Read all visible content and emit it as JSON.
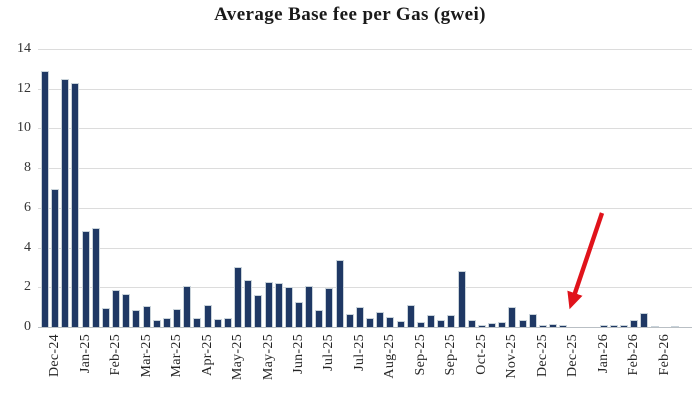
{
  "title": "Average Base fee per Gas (gwei)",
  "chart_data": {
    "type": "bar",
    "title": "Average Base fee per Gas (gwei)",
    "xlabel": "",
    "ylabel": "",
    "ylim": [
      0,
      14
    ],
    "yticks": [
      0,
      2,
      4,
      6,
      8,
      10,
      12,
      14
    ],
    "grid": true,
    "x_unit": "weekly bars",
    "values": [
      12.87,
      6.97,
      12.51,
      12.31,
      4.82,
      4.99,
      0.96,
      1.88,
      1.68,
      0.84,
      1.04,
      0.37,
      0.45,
      0.89,
      2.05,
      0.45,
      1.09,
      0.42,
      0.47,
      3.02,
      2.35,
      1.63,
      2.27,
      2.23,
      2.01,
      1.26,
      2.05,
      0.88,
      1.96,
      3.36,
      0.67,
      1.01,
      0.45,
      0.78,
      0.5,
      0.3,
      1.13,
      0.25,
      0.59,
      0.34,
      0.62,
      2.81,
      0.37,
      0.12,
      0.2,
      0.25,
      1.01,
      0.37,
      0.64,
      0.12,
      0.17,
      0.12,
      0,
      0,
      0,
      0.08,
      0.08,
      0.08,
      0.35,
      0.7,
      0.07,
      0,
      0.07
    ],
    "x_labels": [
      "Dec-24",
      "Jan-25",
      "Feb-25",
      "Mar-25",
      "Mar-25",
      "Apr-25",
      "May-25",
      "May-25",
      "Jun-25",
      "Jul-25",
      "Jul-25",
      "Aug-25",
      "Sep-25",
      "Sep-25",
      "Oct-25",
      "Nov-25",
      "Dec-25",
      "Dec-25",
      "Jan-26",
      "Feb-26",
      "Feb-26"
    ],
    "x_label_every": 3,
    "x_label_first_bar_index": 1,
    "legend": "none",
    "annotation": {
      "type": "red-arrow",
      "points_to_bar_index": 51,
      "points_to_label": "Dec-25"
    }
  },
  "colors": {
    "bar_fill": "#1f3864",
    "bar_border": "#c9d3da",
    "gridline": "#dcdcdc",
    "axis_line": "#b9bfc4",
    "title_text": "#1a1a1a",
    "tick_text": "#262626",
    "arrow": "#e0131b",
    "background": "#ffffff"
  }
}
